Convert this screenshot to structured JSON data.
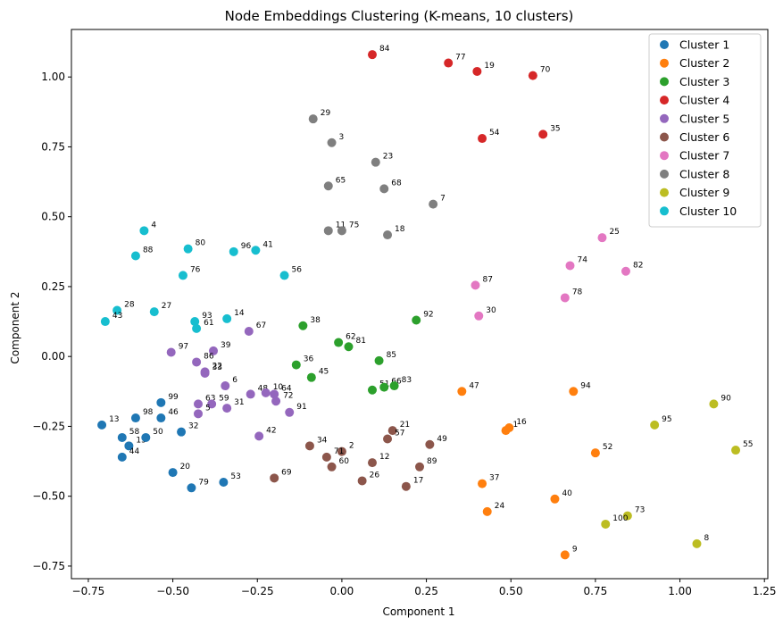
{
  "chart_data": {
    "type": "scatter",
    "title": "Node Embeddings Clustering (K-means, 10 clusters)",
    "xlabel": "Component 1",
    "ylabel": "Component 2",
    "xlim": [
      -0.8,
      1.26
    ],
    "ylim": [
      -0.795,
      1.17
    ],
    "xticks": [
      -0.75,
      -0.5,
      -0.25,
      0.0,
      0.25,
      0.5,
      0.75,
      1.0,
      1.25
    ],
    "xtick_labels": [
      "−0.75",
      "−0.50",
      "−0.25",
      "0.00",
      "0.25",
      "0.50",
      "0.75",
      "1.00",
      "1.25"
    ],
    "yticks": [
      -0.75,
      -0.5,
      -0.25,
      0.0,
      0.25,
      0.5,
      0.75,
      1.0
    ],
    "ytick_labels": [
      "−0.75",
      "−0.50",
      "−0.25",
      "0.00",
      "0.25",
      "0.50",
      "0.75",
      "1.00"
    ],
    "grid": false,
    "legend_position": "top-right",
    "series": [
      {
        "name": "Cluster 1",
        "color": "#1f77b4",
        "points": [
          {
            "label": "13",
            "x": -0.71,
            "y": -0.245
          },
          {
            "label": "98",
            "x": -0.61,
            "y": -0.22
          },
          {
            "label": "99",
            "x": -0.535,
            "y": -0.165
          },
          {
            "label": "46",
            "x": -0.535,
            "y": -0.22
          },
          {
            "label": "58",
            "x": -0.65,
            "y": -0.29
          },
          {
            "label": "15",
            "x": -0.63,
            "y": -0.32
          },
          {
            "label": "50",
            "x": -0.58,
            "y": -0.29
          },
          {
            "label": "44",
            "x": -0.65,
            "y": -0.36
          },
          {
            "label": "32",
            "x": -0.475,
            "y": -0.27
          },
          {
            "label": "20",
            "x": -0.5,
            "y": -0.415
          },
          {
            "label": "79",
            "x": -0.445,
            "y": -0.47
          },
          {
            "label": "53",
            "x": -0.35,
            "y": -0.45
          }
        ]
      },
      {
        "name": "Cluster 2",
        "color": "#ff7f0e",
        "points": [
          {
            "label": "47",
            "x": 0.355,
            "y": -0.125
          },
          {
            "label": "94",
            "x": 0.685,
            "y": -0.125
          },
          {
            "label": "16",
            "x": 0.495,
            "y": -0.255
          },
          {
            "label": "1",
            "x": 0.485,
            "y": -0.265
          },
          {
            "label": "52",
            "x": 0.75,
            "y": -0.345
          },
          {
            "label": "37",
            "x": 0.415,
            "y": -0.455
          },
          {
            "label": "40",
            "x": 0.63,
            "y": -0.51
          },
          {
            "label": "24",
            "x": 0.43,
            "y": -0.555
          },
          {
            "label": "9",
            "x": 0.66,
            "y": -0.71
          }
        ]
      },
      {
        "name": "Cluster 3",
        "color": "#2ca02c",
        "points": [
          {
            "label": "38",
            "x": -0.115,
            "y": 0.11
          },
          {
            "label": "92",
            "x": 0.22,
            "y": 0.13
          },
          {
            "label": "62",
            "x": -0.01,
            "y": 0.05
          },
          {
            "label": "81",
            "x": 0.02,
            "y": 0.035
          },
          {
            "label": "36",
            "x": -0.135,
            "y": -0.03
          },
          {
            "label": "85",
            "x": 0.11,
            "y": -0.015
          },
          {
            "label": "45",
            "x": -0.09,
            "y": -0.075
          },
          {
            "label": "51",
            "x": 0.09,
            "y": -0.12
          },
          {
            "label": "66",
            "x": 0.125,
            "y": -0.11
          },
          {
            "label": "83",
            "x": 0.155,
            "y": -0.105
          }
        ]
      },
      {
        "name": "Cluster 4",
        "color": "#d62728",
        "points": [
          {
            "label": "84",
            "x": 0.09,
            "y": 1.08
          },
          {
            "label": "77",
            "x": 0.315,
            "y": 1.05
          },
          {
            "label": "19",
            "x": 0.4,
            "y": 1.02
          },
          {
            "label": "70",
            "x": 0.565,
            "y": 1.005
          },
          {
            "label": "54",
            "x": 0.415,
            "y": 0.78
          },
          {
            "label": "35",
            "x": 0.595,
            "y": 0.795
          }
        ]
      },
      {
        "name": "Cluster 5",
        "color": "#9467bd",
        "points": [
          {
            "label": "67",
            "x": -0.275,
            "y": 0.09
          },
          {
            "label": "97",
            "x": -0.505,
            "y": 0.015
          },
          {
            "label": "39",
            "x": -0.38,
            "y": 0.02
          },
          {
            "label": "86",
            "x": -0.43,
            "y": -0.02
          },
          {
            "label": "22",
            "x": -0.405,
            "y": -0.055
          },
          {
            "label": "33",
            "x": -0.405,
            "y": -0.06
          },
          {
            "label": "6",
            "x": -0.345,
            "y": -0.105
          },
          {
            "label": "48",
            "x": -0.27,
            "y": -0.135
          },
          {
            "label": "10",
            "x": -0.225,
            "y": -0.13
          },
          {
            "label": "64",
            "x": -0.2,
            "y": -0.135
          },
          {
            "label": "72",
            "x": -0.195,
            "y": -0.16
          },
          {
            "label": "63",
            "x": -0.425,
            "y": -0.17
          },
          {
            "label": "59",
            "x": -0.385,
            "y": -0.17
          },
          {
            "label": "31",
            "x": -0.34,
            "y": -0.185
          },
          {
            "label": "5",
            "x": -0.425,
            "y": -0.205
          },
          {
            "label": "91",
            "x": -0.155,
            "y": -0.2
          },
          {
            "label": "42",
            "x": -0.245,
            "y": -0.285
          }
        ]
      },
      {
        "name": "Cluster 6",
        "color": "#8c564b",
        "points": [
          {
            "label": "21",
            "x": 0.15,
            "y": -0.265
          },
          {
            "label": "57",
            "x": 0.135,
            "y": -0.295
          },
          {
            "label": "49",
            "x": 0.26,
            "y": -0.315
          },
          {
            "label": "34",
            "x": -0.095,
            "y": -0.32
          },
          {
            "label": "2",
            "x": 0.0,
            "y": -0.34
          },
          {
            "label": "71",
            "x": -0.045,
            "y": -0.36
          },
          {
            "label": "12",
            "x": 0.09,
            "y": -0.38
          },
          {
            "label": "60",
            "x": -0.03,
            "y": -0.395
          },
          {
            "label": "89",
            "x": 0.23,
            "y": -0.395
          },
          {
            "label": "69",
            "x": -0.2,
            "y": -0.435
          },
          {
            "label": "26",
            "x": 0.06,
            "y": -0.445
          },
          {
            "label": "17",
            "x": 0.19,
            "y": -0.465
          }
        ]
      },
      {
        "name": "Cluster 7",
        "color": "#e377c2",
        "points": [
          {
            "label": "25",
            "x": 0.77,
            "y": 0.425
          },
          {
            "label": "74",
            "x": 0.675,
            "y": 0.325
          },
          {
            "label": "82",
            "x": 0.84,
            "y": 0.305
          },
          {
            "label": "87",
            "x": 0.395,
            "y": 0.255
          },
          {
            "label": "78",
            "x": 0.66,
            "y": 0.21
          },
          {
            "label": "30",
            "x": 0.405,
            "y": 0.145
          }
        ]
      },
      {
        "name": "Cluster 8",
        "color": "#7f7f7f",
        "points": [
          {
            "label": "29",
            "x": -0.085,
            "y": 0.85
          },
          {
            "label": "3",
            "x": -0.03,
            "y": 0.765
          },
          {
            "label": "23",
            "x": 0.1,
            "y": 0.695
          },
          {
            "label": "65",
            "x": -0.04,
            "y": 0.61
          },
          {
            "label": "68",
            "x": 0.125,
            "y": 0.6
          },
          {
            "label": "7",
            "x": 0.27,
            "y": 0.545
          },
          {
            "label": "11",
            "x": -0.04,
            "y": 0.45
          },
          {
            "label": "75",
            "x": 0.0,
            "y": 0.45
          },
          {
            "label": "18",
            "x": 0.135,
            "y": 0.435
          }
        ]
      },
      {
        "name": "Cluster 9",
        "color": "#bcbd22",
        "points": [
          {
            "label": "90",
            "x": 1.1,
            "y": -0.17
          },
          {
            "label": "95",
            "x": 0.925,
            "y": -0.245
          },
          {
            "label": "55",
            "x": 1.165,
            "y": -0.335
          },
          {
            "label": "73",
            "x": 0.845,
            "y": -0.57
          },
          {
            "label": "100",
            "x": 0.78,
            "y": -0.6
          },
          {
            "label": "8",
            "x": 1.05,
            "y": -0.67
          }
        ]
      },
      {
        "name": "Cluster 10",
        "color": "#17becf",
        "points": [
          {
            "label": "4",
            "x": -0.585,
            "y": 0.45
          },
          {
            "label": "80",
            "x": -0.455,
            "y": 0.385
          },
          {
            "label": "96",
            "x": -0.32,
            "y": 0.375
          },
          {
            "label": "41",
            "x": -0.255,
            "y": 0.38
          },
          {
            "label": "88",
            "x": -0.61,
            "y": 0.36
          },
          {
            "label": "76",
            "x": -0.47,
            "y": 0.29
          },
          {
            "label": "56",
            "x": -0.17,
            "y": 0.29
          },
          {
            "label": "28",
            "x": -0.665,
            "y": 0.165
          },
          {
            "label": "27",
            "x": -0.555,
            "y": 0.16
          },
          {
            "label": "43",
            "x": -0.7,
            "y": 0.125
          },
          {
            "label": "14",
            "x": -0.34,
            "y": 0.135
          },
          {
            "label": "93",
            "x": -0.435,
            "y": 0.125
          },
          {
            "label": "61",
            "x": -0.43,
            "y": 0.1
          }
        ]
      }
    ]
  }
}
